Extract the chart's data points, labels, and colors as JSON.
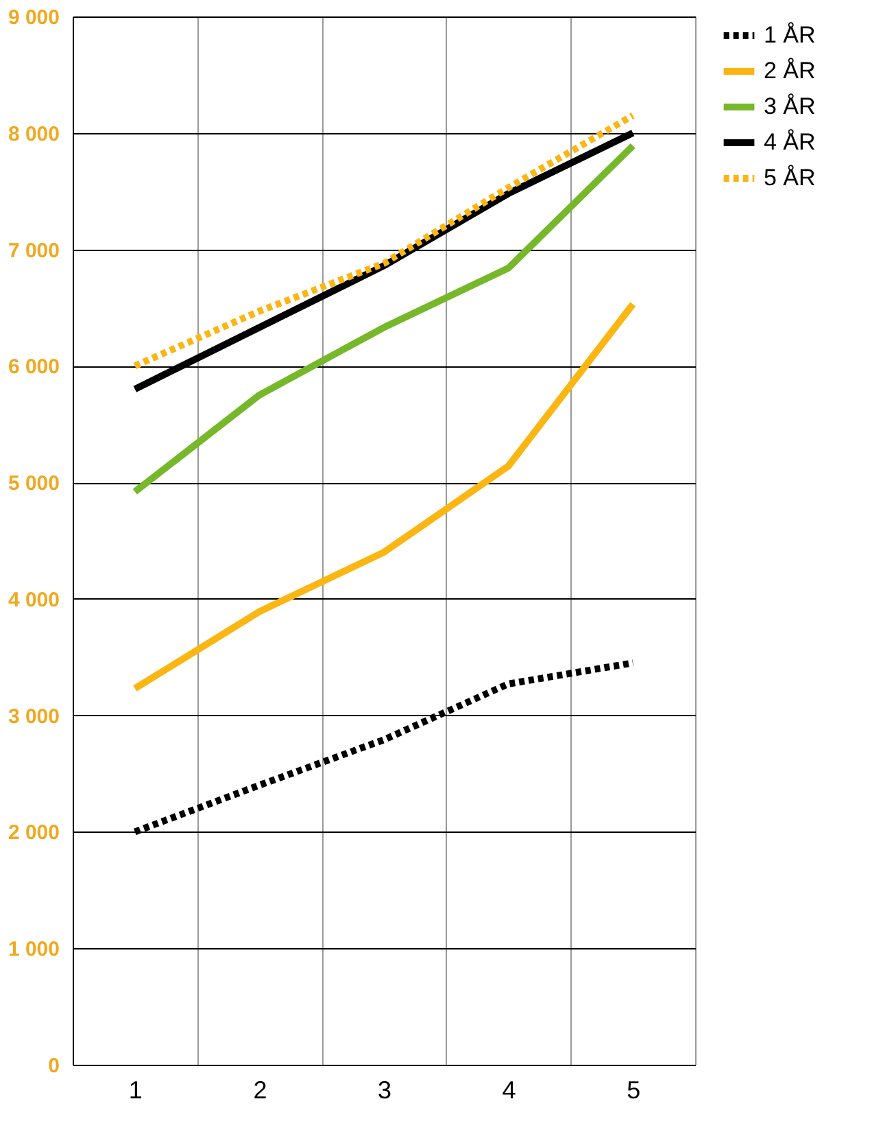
{
  "chart_data": {
    "type": "line",
    "categories": [
      "1",
      "2",
      "3",
      "4",
      "5"
    ],
    "series": [
      {
        "name": "1 ÅR",
        "color": "#000000",
        "line_style": "dotted",
        "values": [
          2000,
          2400,
          2790,
          3270,
          3450
        ]
      },
      {
        "name": "2 ÅR",
        "color": "#fbb614",
        "line_style": "solid",
        "values": [
          3230,
          3890,
          4400,
          5140,
          6530
        ]
      },
      {
        "name": "3 ÅR",
        "color": "#76b82a",
        "line_style": "solid",
        "values": [
          4920,
          5750,
          6330,
          6840,
          7890
        ]
      },
      {
        "name": "4 ÅR",
        "color": "#000000",
        "line_style": "solid",
        "values": [
          5800,
          6330,
          6860,
          7480,
          8000
        ]
      },
      {
        "name": "5 ÅR",
        "color": "#fbb614",
        "line_style": "dotted",
        "values": [
          6000,
          6470,
          6880,
          7530,
          8150
        ]
      }
    ],
    "ylim": [
      0,
      9000
    ],
    "yticks": [
      {
        "value": 0,
        "label": "0"
      },
      {
        "value": 1000,
        "label": "1 000"
      },
      {
        "value": 2000,
        "label": "2 000"
      },
      {
        "value": 3000,
        "label": "3 000"
      },
      {
        "value": 4000,
        "label": "4 000"
      },
      {
        "value": 5000,
        "label": "5 000"
      },
      {
        "value": 6000,
        "label": "6 000"
      },
      {
        "value": 7000,
        "label": "7 000"
      },
      {
        "value": 8000,
        "label": "8 000"
      },
      {
        "value": 9000,
        "label": "9 000"
      }
    ],
    "grid": true,
    "legend": "right",
    "marker": "none"
  }
}
